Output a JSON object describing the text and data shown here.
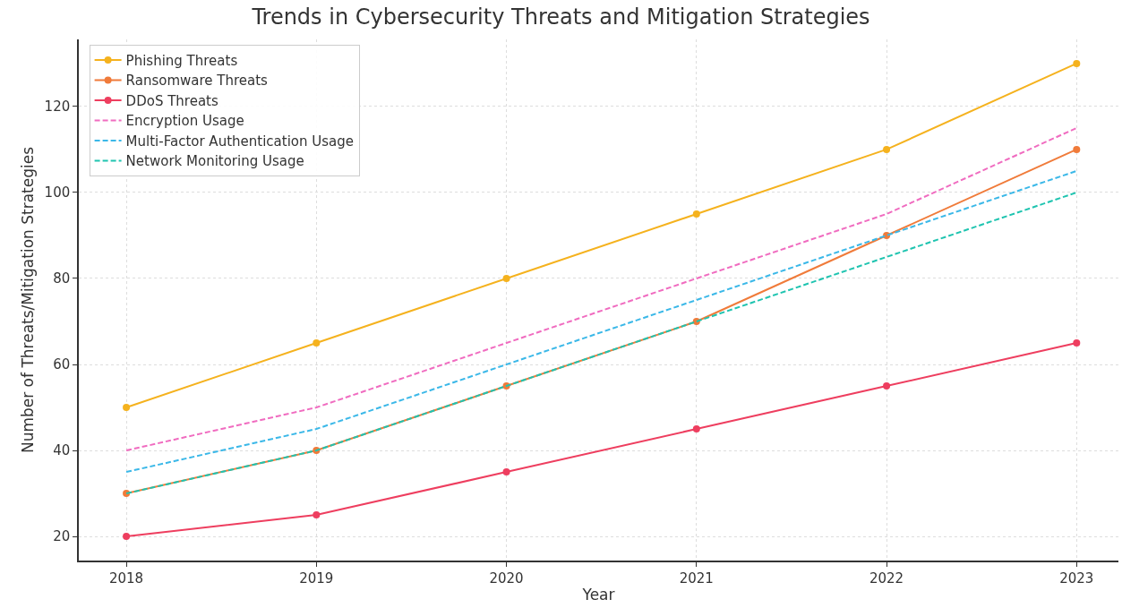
{
  "chart_data": {
    "type": "line",
    "title": "Trends in Cybersecurity Threats and Mitigation Strategies",
    "xlabel": "Year",
    "ylabel": "Number of Threats/Mitigation Strategies",
    "x": [
      2018,
      2019,
      2020,
      2021,
      2022,
      2023
    ],
    "series": [
      {
        "name": "Phishing Threats",
        "color": "#f5b21e",
        "marker": "circle",
        "line_style": "solid",
        "values": [
          50,
          65,
          80,
          95,
          110,
          130
        ]
      },
      {
        "name": "Ransomware Threats",
        "color": "#f07b3a",
        "marker": "circle",
        "line_style": "solid",
        "values": [
          30,
          40,
          55,
          70,
          90,
          110
        ]
      },
      {
        "name": "DDoS Threats",
        "color": "#ee3e5f",
        "marker": "circle",
        "line_style": "solid",
        "values": [
          20,
          25,
          35,
          45,
          55,
          65
        ]
      },
      {
        "name": "Encryption Usage",
        "color": "#f06cc0",
        "marker": "none",
        "line_style": "dashed",
        "values": [
          40,
          50,
          65,
          80,
          95,
          115
        ]
      },
      {
        "name": "Multi-Factor Authentication Usage",
        "color": "#3bb8e8",
        "marker": "none",
        "line_style": "dashed",
        "values": [
          35,
          45,
          60,
          75,
          90,
          105
        ]
      },
      {
        "name": "Network Monitoring Usage",
        "color": "#1fc4b0",
        "marker": "none",
        "line_style": "dashed",
        "values": [
          30,
          40,
          55,
          70,
          85,
          100
        ]
      }
    ],
    "xlim": [
      2017.75,
      2023.22
    ],
    "xticks": [
      2018,
      2019,
      2020,
      2021,
      2022,
      2023
    ],
    "ylim": [
      14.4,
      135.6
    ],
    "yticks": [
      20,
      40,
      60,
      80,
      100,
      120
    ],
    "grid": true,
    "legend": "top left"
  }
}
